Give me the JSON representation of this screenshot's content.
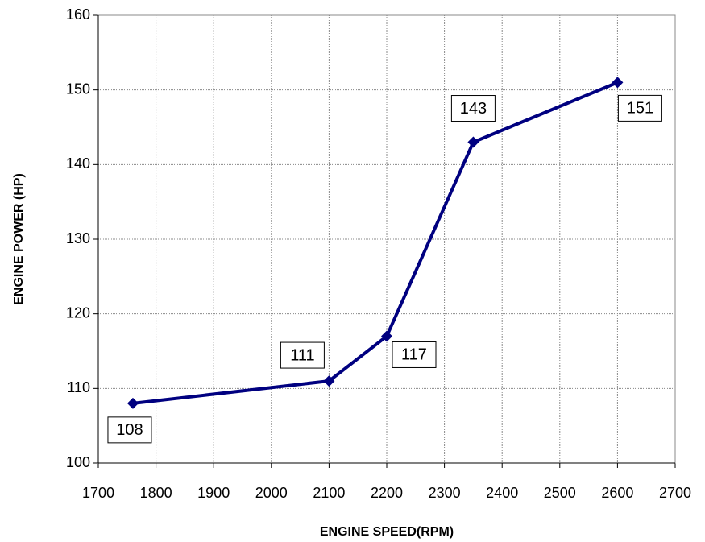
{
  "chart_data": {
    "type": "line",
    "x": [
      1760,
      2100,
      2200,
      2350,
      2600
    ],
    "series": [
      {
        "name": "Engine Power",
        "color": "#000080",
        "values": [
          108,
          111,
          117,
          143,
          151
        ]
      }
    ],
    "xlabel": "ENGINE SPEED(RPM)",
    "ylabel": "ENGINE POWER (HP)",
    "xlim": [
      1700,
      2700
    ],
    "xticks": [
      1700,
      1800,
      1900,
      2000,
      2100,
      2200,
      2300,
      2400,
      2500,
      2600,
      2700
    ],
    "ylim": [
      100,
      160
    ],
    "yticks": [
      100,
      110,
      120,
      130,
      140,
      150,
      160
    ],
    "grid": true
  }
}
